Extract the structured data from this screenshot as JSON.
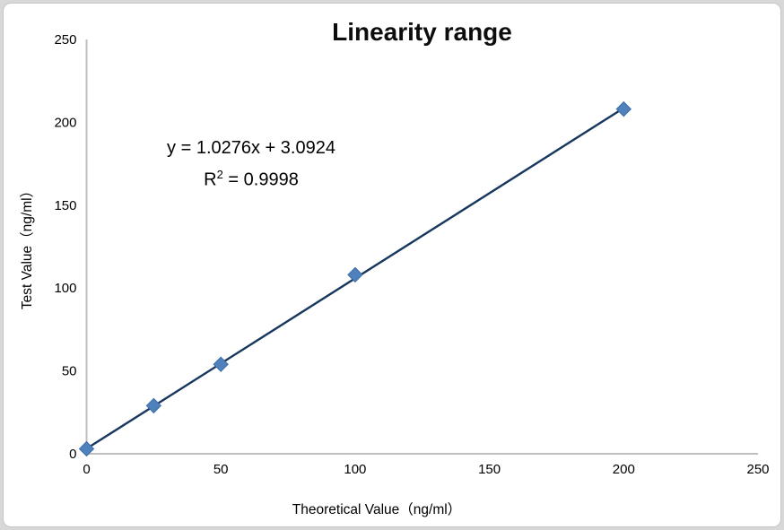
{
  "chart_data": {
    "type": "scatter",
    "title": "Linearity range",
    "xlabel": "Theoretical Value（ng/ml）",
    "ylabel": "Test Value（ng/ml）",
    "x": [
      0,
      25,
      50,
      100,
      200
    ],
    "y": [
      3,
      29,
      54,
      108,
      208
    ],
    "xlim": [
      0,
      250
    ],
    "ylim": [
      0,
      250
    ],
    "xticks": [
      0,
      50,
      100,
      150,
      200,
      250
    ],
    "yticks": [
      0,
      50,
      100,
      150,
      200,
      250
    ],
    "grid": false,
    "legend": "none",
    "trendline": {
      "slope": 1.0276,
      "intercept": 3.0924,
      "x_range": [
        0,
        200
      ],
      "color": "#17375e",
      "width": 2.4
    },
    "annotation": {
      "equation": "y = 1.0276x + 3.0924",
      "r_squared": {
        "base": "R",
        "sup": "2",
        "rest": " = 0.9998"
      }
    },
    "style": {
      "axis_color": "#bfbfbf",
      "marker_shape": "diamond",
      "marker_fill": "#4f81bd",
      "marker_stroke": "#3a6da6",
      "text_color": "#000000"
    }
  }
}
